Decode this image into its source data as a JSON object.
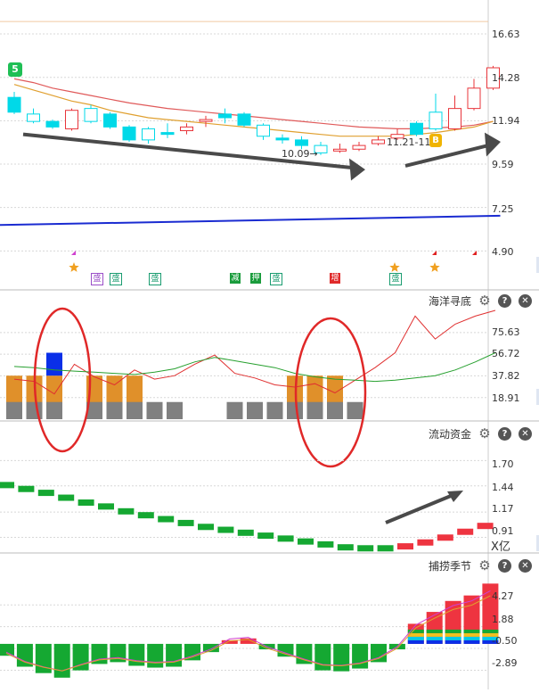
{
  "panels": {
    "main": {
      "y_ticks": [
        "16.63",
        "14.28",
        "11.94",
        "9.59",
        "7.25",
        "4.90"
      ],
      "annotations": {
        "low_price": "10.09",
        "range": "11.21-11.5",
        "signal_mark": "5",
        "buy_badge": "B"
      },
      "event_tags": [
        "盛",
        "盛",
        "盛",
        "减",
        "押",
        "盛",
        "增",
        "盛"
      ]
    },
    "haiyang": {
      "title": "海洋寻底",
      "y_ticks": [
        "75.63",
        "56.72",
        "37.82",
        "18.91"
      ]
    },
    "liudong": {
      "title": "流动资金",
      "y_ticks": [
        "1.70",
        "1.44",
        "1.17",
        "0.91"
      ],
      "unit": "X亿"
    },
    "bulao": {
      "title": "捕捞季节",
      "y_ticks": [
        "4.27",
        "1.88",
        "-0.50",
        "-2.89"
      ]
    }
  },
  "buttons": {
    "help": "?",
    "close": "✕",
    "settings": "⚙"
  },
  "colors": {
    "up": "#e8343a",
    "down": "#00d9e8",
    "ma_red": "#e05a5a",
    "ma_orange": "#e0a030",
    "ma_blue": "#1a2bd1",
    "bar_gray": "#808080",
    "bar_orange": "#e0902a",
    "bar_blue": "#0a2fe8",
    "green_bar": "#15a832",
    "red_bar": "#ee3440",
    "line_red": "#e03030",
    "line_green": "#27a02f",
    "circle": "#e02828",
    "arrow": "#4a4a4a"
  },
  "chart_data": [
    {
      "type": "candlestick",
      "title": "",
      "ylim": [
        4.0,
        17.5
      ],
      "y_ticks": [
        16.63,
        14.28,
        11.94,
        9.59,
        7.25,
        4.9
      ],
      "candles": [
        {
          "o": 13.2,
          "c": 12.4,
          "h": 13.5,
          "l": 12.3
        },
        {
          "o": 12.3,
          "c": 11.9,
          "h": 12.6,
          "l": 11.8
        },
        {
          "o": 11.9,
          "c": 11.6,
          "h": 12.0,
          "l": 11.5
        },
        {
          "o": 11.5,
          "c": 12.5,
          "h": 12.6,
          "l": 11.4
        },
        {
          "o": 12.6,
          "c": 11.9,
          "h": 12.8,
          "l": 11.8
        },
        {
          "o": 12.3,
          "c": 11.6,
          "h": 12.4,
          "l": 11.5
        },
        {
          "o": 11.6,
          "c": 10.9,
          "h": 11.7,
          "l": 10.8
        },
        {
          "o": 11.5,
          "c": 10.9,
          "h": 11.6,
          "l": 10.7
        },
        {
          "o": 11.3,
          "c": 11.2,
          "h": 11.8,
          "l": 11.0
        },
        {
          "o": 11.4,
          "c": 11.6,
          "h": 11.8,
          "l": 11.2
        },
        {
          "o": 11.9,
          "c": 12.0,
          "h": 12.2,
          "l": 11.6
        },
        {
          "o": 12.3,
          "c": 12.1,
          "h": 12.6,
          "l": 11.8
        },
        {
          "o": 12.3,
          "c": 11.7,
          "h": 12.4,
          "l": 11.6
        },
        {
          "o": 11.7,
          "c": 11.1,
          "h": 11.8,
          "l": 10.9
        },
        {
          "o": 11.0,
          "c": 10.9,
          "h": 11.2,
          "l": 10.7
        },
        {
          "o": 10.9,
          "c": 10.6,
          "h": 11.1,
          "l": 10.4
        },
        {
          "o": 10.6,
          "c": 10.2,
          "h": 10.8,
          "l": 10.09
        },
        {
          "o": 10.3,
          "c": 10.4,
          "h": 10.7,
          "l": 10.2
        },
        {
          "o": 10.4,
          "c": 10.6,
          "h": 10.8,
          "l": 10.3
        },
        {
          "o": 10.7,
          "c": 10.9,
          "h": 11.1,
          "l": 10.6
        },
        {
          "o": 11.0,
          "c": 11.2,
          "h": 11.5,
          "l": 10.9
        },
        {
          "o": 11.8,
          "c": 11.2,
          "h": 11.9,
          "l": 11.1
        },
        {
          "o": 12.4,
          "c": 11.5,
          "h": 13.4,
          "l": 11.4
        },
        {
          "o": 11.5,
          "c": 12.6,
          "h": 13.3,
          "l": 11.4
        },
        {
          "o": 12.6,
          "c": 13.7,
          "h": 14.2,
          "l": 12.5
        },
        {
          "o": 13.7,
          "c": 14.8,
          "h": 14.9,
          "l": 13.6
        }
      ],
      "ma_red": [
        14.2,
        14.0,
        13.7,
        13.5,
        13.3,
        13.1,
        12.9,
        12.75,
        12.6,
        12.5,
        12.4,
        12.3,
        12.2,
        12.1,
        12.0,
        11.9,
        11.8,
        11.7,
        11.6,
        11.55,
        11.5,
        11.5,
        11.55,
        11.6,
        11.7,
        11.9
      ],
      "ma_orange": [
        13.9,
        13.6,
        13.3,
        13.0,
        12.8,
        12.5,
        12.3,
        12.1,
        12.0,
        11.9,
        11.8,
        11.7,
        11.6,
        11.5,
        11.4,
        11.3,
        11.2,
        11.1,
        11.1,
        11.1,
        11.1,
        11.2,
        11.3,
        11.45,
        11.6,
        11.9
      ],
      "ma_blue": [
        6.3,
        6.8
      ]
    },
    {
      "type": "bar",
      "title": "海洋寻底",
      "ylim": [
        0,
        95
      ],
      "y_ticks": [
        75.63,
        56.72,
        37.82,
        18.91
      ],
      "gray": [
        15,
        15,
        15,
        0,
        15,
        15,
        15,
        15,
        15,
        0,
        0,
        15,
        15,
        15,
        15,
        15,
        15,
        15,
        0,
        0,
        0,
        0,
        0,
        0,
        0
      ],
      "orange": [
        38,
        38,
        38,
        0,
        38,
        38,
        38,
        0,
        0,
        0,
        0,
        0,
        0,
        0,
        38,
        38,
        38,
        0,
        0,
        0,
        0,
        0,
        0,
        0,
        0
      ],
      "blue": [
        0,
        0,
        58,
        0,
        0,
        0,
        0,
        0,
        0,
        0,
        0,
        0,
        0,
        0,
        0,
        0,
        0,
        0,
        0,
        0,
        0,
        0,
        0,
        0,
        0
      ],
      "line_red": [
        35,
        33,
        22,
        48,
        37,
        30,
        43,
        35,
        38,
        48,
        56,
        40,
        36,
        30,
        28,
        31,
        23,
        34,
        45,
        58,
        90,
        70,
        83,
        90,
        95
      ],
      "line_green": [
        46,
        45,
        43,
        42,
        41,
        40,
        39,
        41,
        44,
        50,
        54,
        51,
        48,
        45,
        40,
        37,
        35,
        34,
        33,
        34,
        36,
        38,
        43,
        50,
        58
      ]
    },
    {
      "type": "bar",
      "title": "流动资金",
      "unit": "X亿",
      "ylim": [
        0.75,
        1.85
      ],
      "y_ticks": [
        1.7,
        1.44,
        1.17,
        0.91
      ],
      "values": [
        1.48,
        1.44,
        1.4,
        1.35,
        1.3,
        1.26,
        1.21,
        1.17,
        1.13,
        1.09,
        1.05,
        1.02,
        0.99,
        0.96,
        0.93,
        0.9,
        0.87,
        0.84,
        0.83,
        0.83,
        0.85,
        0.89,
        0.94,
        1.0,
        1.06
      ],
      "colors": [
        "green",
        "green",
        "green",
        "green",
        "green",
        "green",
        "green",
        "green",
        "green",
        "green",
        "green",
        "green",
        "green",
        "green",
        "green",
        "green",
        "green",
        "green",
        "green",
        "green",
        "red",
        "red",
        "red",
        "red",
        "red"
      ]
    },
    {
      "type": "bar",
      "title": "捕捞季节",
      "ylim": [
        -4.5,
        8.0
      ],
      "y_ticks": [
        4.27,
        1.88,
        -0.5,
        -2.89
      ],
      "values": [
        -1.3,
        -2.5,
        -3.2,
        -3.7,
        -2.9,
        -2.2,
        -2.0,
        -2.4,
        -2.6,
        -2.5,
        -1.8,
        -0.9,
        0.4,
        0.6,
        -0.6,
        -1.4,
        -2.2,
        -2.9,
        -3.0,
        -2.7,
        -2.0,
        -0.6,
        2.2,
        3.5,
        4.7,
        5.3,
        6.6
      ]
    }
  ]
}
